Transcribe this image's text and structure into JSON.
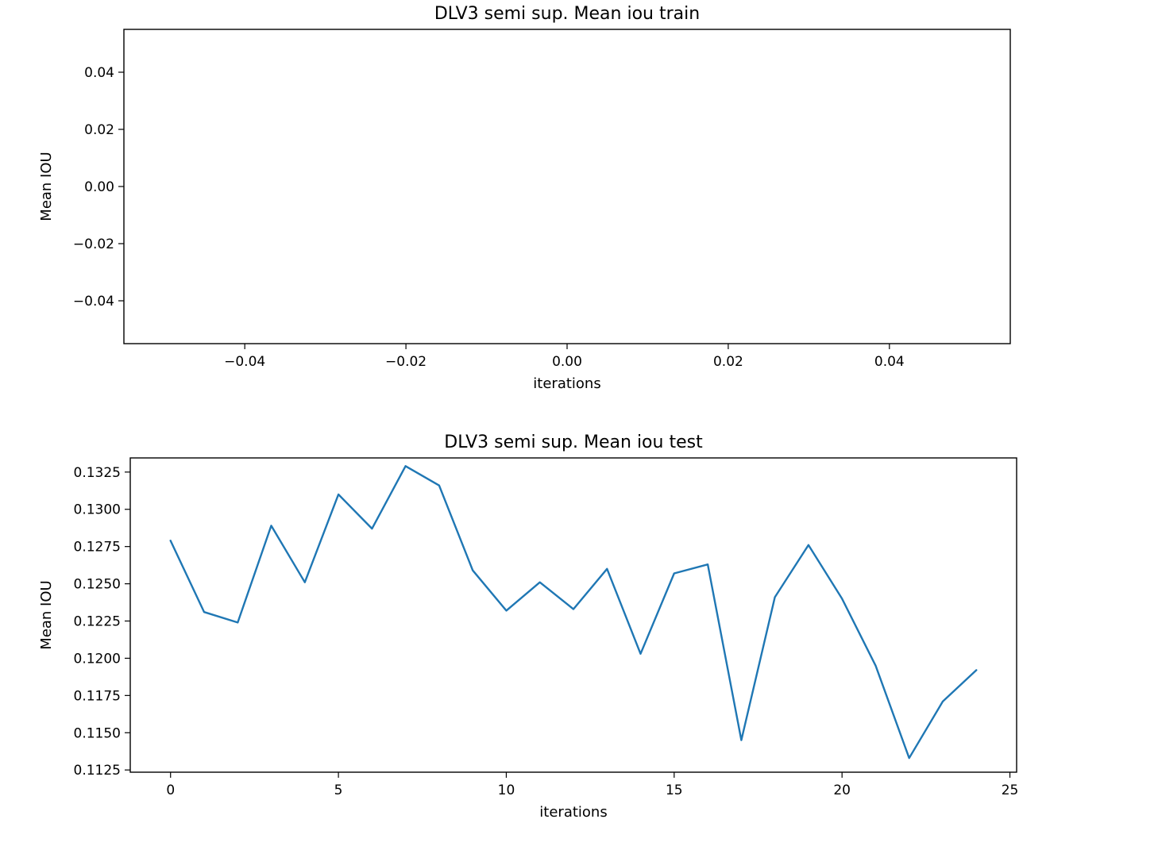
{
  "chart_data": [
    {
      "type": "line",
      "title": "DLV3 semi sup. Mean iou train",
      "xlabel": "iterations",
      "ylabel": "Mean IOU",
      "xlim": [
        -0.055,
        0.055
      ],
      "ylim": [
        -0.055,
        0.055
      ],
      "xticks": [
        -0.04,
        -0.02,
        0.0,
        0.02,
        0.04
      ],
      "xtick_labels": [
        "−0.04",
        "−0.02",
        "0.00",
        "0.02",
        "0.04"
      ],
      "yticks": [
        0.04,
        0.02,
        0.0,
        -0.02,
        -0.04
      ],
      "ytick_labels": [
        "0.04",
        "0.02",
        "0.00",
        "−0.02",
        "−0.04"
      ],
      "grid": false,
      "color": "#1f77b4",
      "x": [],
      "y": []
    },
    {
      "type": "line",
      "title": "DLV3 semi sup. Mean iou test",
      "xlabel": "iterations",
      "ylabel": "Mean IOU",
      "xlim": [
        -1.2,
        25.2
      ],
      "ylim": [
        0.11235,
        0.13345
      ],
      "xticks": [
        0,
        5,
        10,
        15,
        20,
        25
      ],
      "xtick_labels": [
        "0",
        "5",
        "10",
        "15",
        "20",
        "25"
      ],
      "yticks": [
        0.1325,
        0.13,
        0.1275,
        0.125,
        0.1225,
        0.12,
        0.1175,
        0.115,
        0.1125
      ],
      "ytick_labels": [
        "0.1325",
        "0.1300",
        "0.1275",
        "0.1250",
        "0.1225",
        "0.1200",
        "0.1175",
        "0.1150",
        "0.1125"
      ],
      "grid": false,
      "color": "#1f77b4",
      "x": [
        0,
        1,
        2,
        3,
        4,
        5,
        6,
        7,
        8,
        9,
        10,
        11,
        12,
        13,
        14,
        15,
        16,
        17,
        18,
        19,
        20,
        21,
        22,
        23,
        24
      ],
      "y": [
        0.1279,
        0.1231,
        0.1224,
        0.1289,
        0.1251,
        0.131,
        0.1287,
        0.1329,
        0.1316,
        0.1259,
        0.1232,
        0.1251,
        0.1233,
        0.126,
        0.1203,
        0.1257,
        0.1263,
        0.1145,
        0.1241,
        0.1276,
        0.124,
        0.1195,
        0.1133,
        0.1171,
        0.1192
      ]
    }
  ]
}
